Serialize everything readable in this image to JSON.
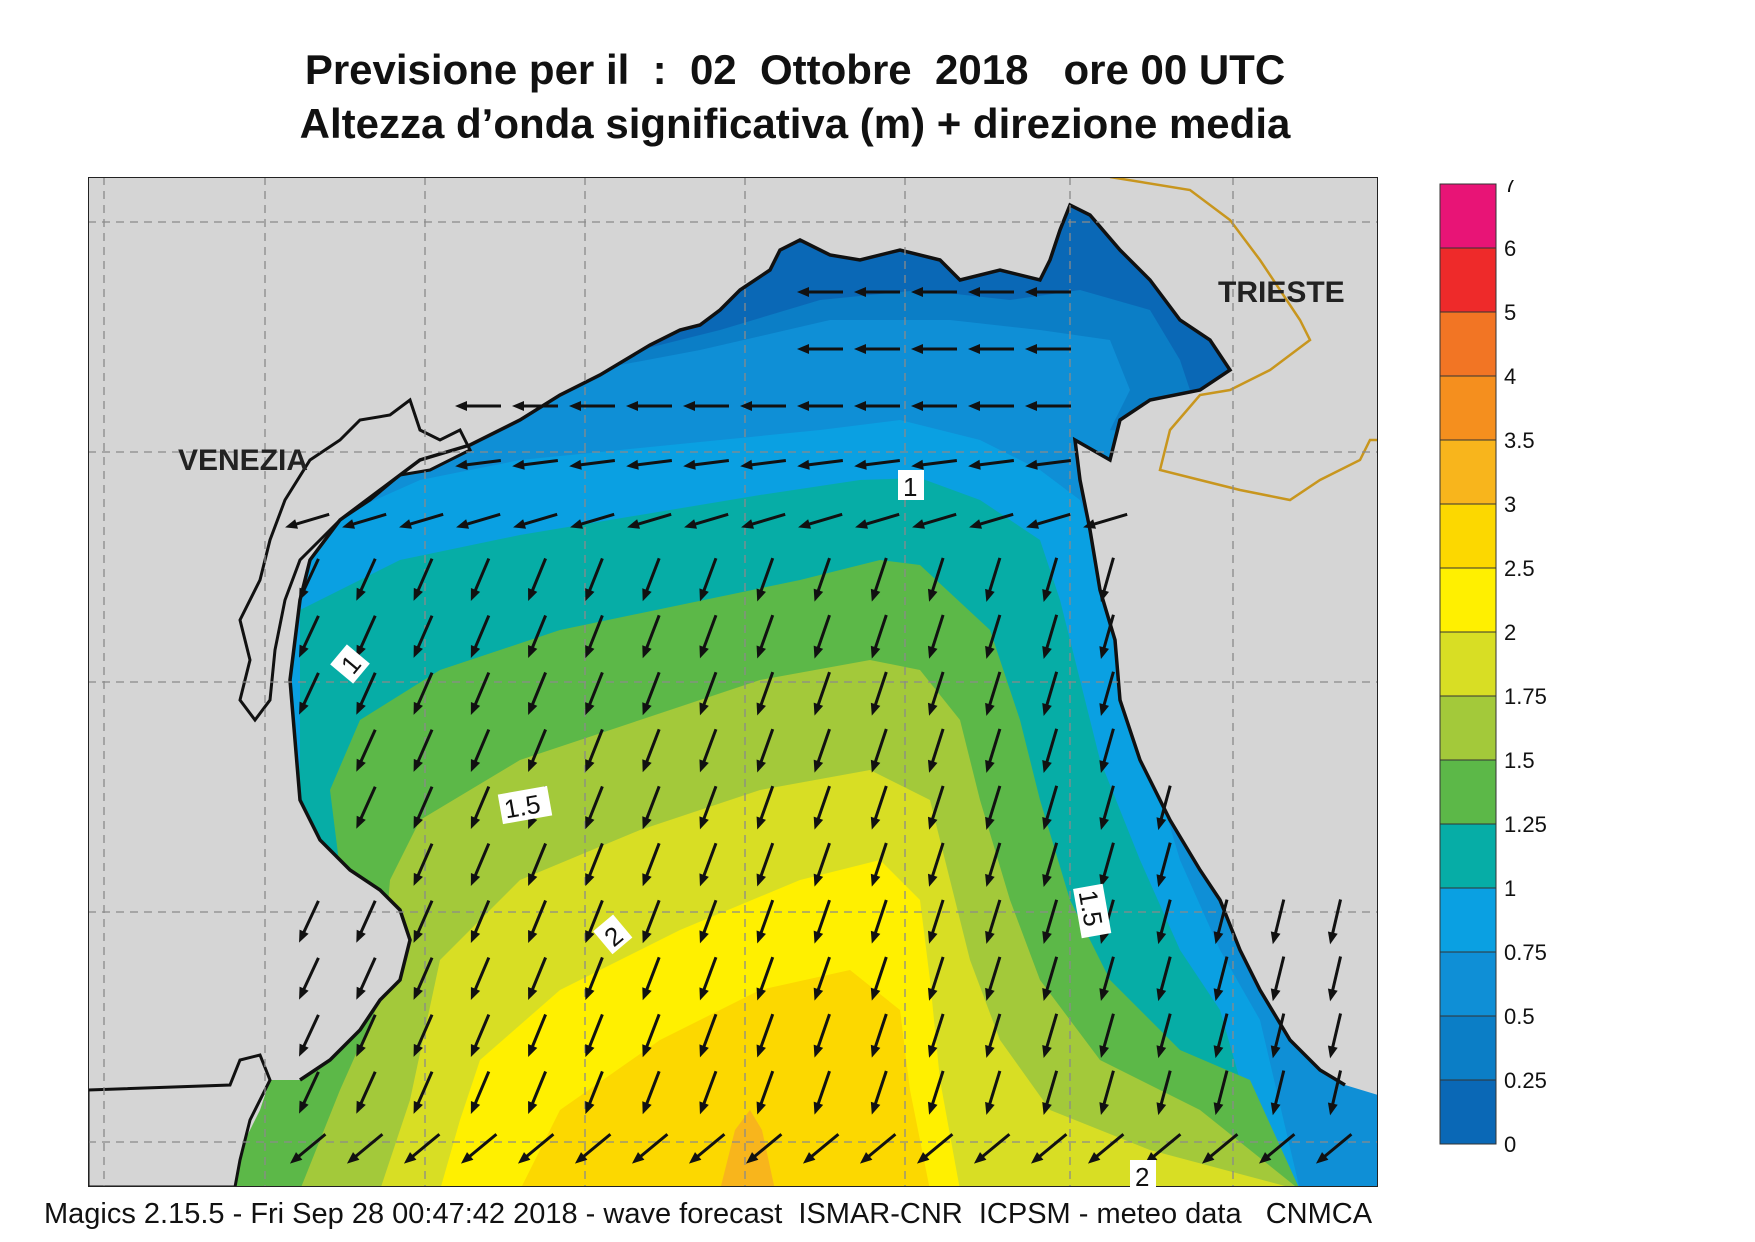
{
  "title_line1": "Previsione per il  :  02  Ottobre  2018   ore 00 UTC",
  "title_line2": "Altezza d’onda significativa (m) + direzione media",
  "footer": "Magics 2.15.5 - Fri Sep 28 00:47:42 2018 - wave forecast  ISMAR-CNR  ICPSM - meteo data   CNMCA",
  "cities": {
    "venezia": "VENEZIA",
    "trieste": "TRIESTE"
  },
  "contour_labels": {
    "c1a": "1",
    "c1b": "1",
    "c15a": "1.5",
    "c15b": "1.5",
    "c2a": "2",
    "c2b": "2"
  },
  "legend": {
    "ticks": [
      "0",
      "0.25",
      "0.5",
      "0.75",
      "1",
      "1.25",
      "1.5",
      "1.75",
      "2",
      "2.5",
      "3",
      "3.5",
      "4",
      "5",
      "6",
      "7"
    ],
    "colors": [
      "#0a68b6",
      "#0b7ec6",
      "#0f8fd6",
      "#0aa0e2",
      "#06ada6",
      "#5cb848",
      "#a3c93a",
      "#d8de24",
      "#fff000",
      "#fcd800",
      "#f8b51c",
      "#f58f1e",
      "#f27524",
      "#ee2a2a",
      "#e81476"
    ]
  },
  "colors": {
    "land": "#d5d5d5",
    "coast": "#111111",
    "border": "#c8961e",
    "grid": "#8a8a8a"
  }
}
